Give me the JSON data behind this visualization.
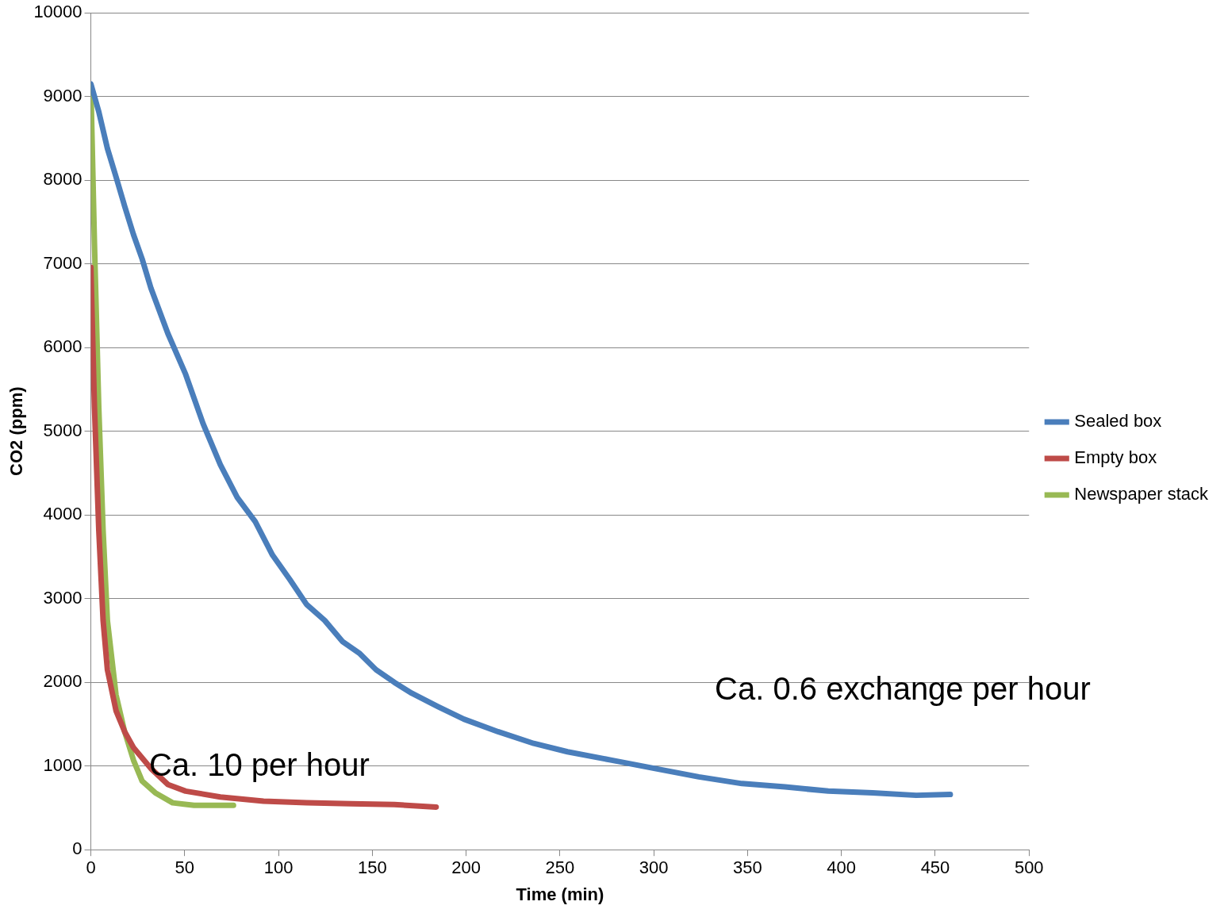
{
  "chart_data": {
    "type": "line",
    "xlabel": "Time (min)",
    "ylabel": "CO2 (ppm)",
    "xlim": [
      0,
      500
    ],
    "xticks": [
      0,
      50,
      100,
      150,
      200,
      250,
      300,
      350,
      400,
      450,
      500
    ],
    "ylim": [
      0,
      10000
    ],
    "yticks": [
      0,
      1000,
      2000,
      3000,
      4000,
      5000,
      6000,
      7000,
      8000,
      9000,
      10000
    ],
    "grid": "y",
    "legend": "right",
    "marker": "none",
    "line_style": "solid",
    "series": [
      {
        "name": "Sealed box",
        "color": "#4a7ebb",
        "x": [
          0,
          4.2,
          8.8,
          13.4,
          18,
          22.7,
          27.3,
          32,
          41,
          50.5,
          59.8,
          69,
          78,
          87.6,
          96.8,
          106,
          115,
          124.6,
          134,
          143,
          152,
          161.7,
          171,
          185,
          198.8,
          217,
          236,
          254,
          277.6,
          300.7,
          324,
          347,
          370,
          393,
          416.6,
          439.8,
          458
        ],
        "values": [
          9150,
          8820,
          8380,
          8040,
          7690,
          7350,
          7060,
          6710,
          6170,
          5680,
          5090,
          4600,
          4210,
          3920,
          3520,
          3230,
          2930,
          2740,
          2490,
          2350,
          2150,
          2000,
          1870,
          1710,
          1560,
          1410,
          1270,
          1170,
          1070,
          970,
          870,
          790,
          750,
          700,
          680,
          650,
          660
        ]
      },
      {
        "name": "Empty box",
        "color": "#be4b48",
        "x": [
          0,
          1.9,
          4.2,
          6.5,
          8.8,
          13.4,
          18,
          22.7,
          32,
          41,
          50.5,
          69,
          92,
          115,
          138.5,
          161.7,
          184
        ],
        "values": [
          6960,
          5290,
          3820,
          2740,
          2150,
          1660,
          1410,
          1220,
          970,
          780,
          700,
          630,
          580,
          560,
          550,
          540,
          510
        ]
      },
      {
        "name": "Newspaper stack",
        "color": "#98b954",
        "x": [
          0,
          1.9,
          4.2,
          6.5,
          8.8,
          13.4,
          18,
          22.7,
          27.3,
          34.3,
          43.6,
          55,
          64,
          76
        ],
        "values": [
          9120,
          7250,
          5290,
          3820,
          2740,
          1850,
          1410,
          1070,
          820,
          680,
          560,
          530,
          530,
          530
        ]
      }
    ],
    "annotations": [
      {
        "text": "Ca. 10 per hour",
        "x": 31,
        "y": 990
      },
      "Ca. 0.6 exchange per hour"
    ]
  }
}
